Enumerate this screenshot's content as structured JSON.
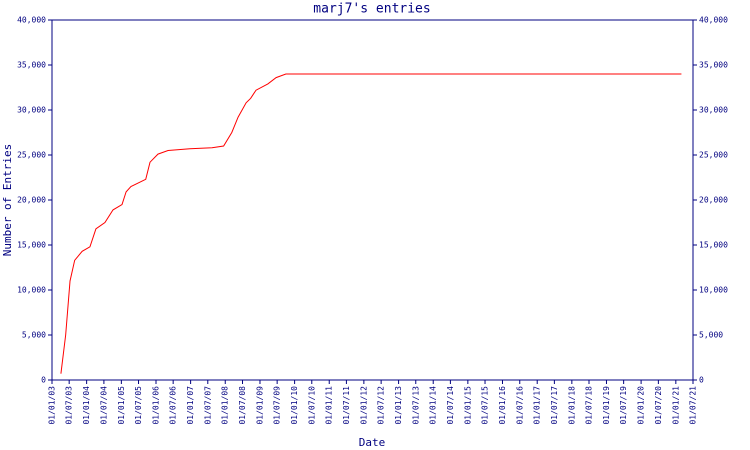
{
  "chart_data": {
    "type": "line",
    "title": "marj7's entries",
    "xlabel": "Date",
    "ylabel": "Number of Entries",
    "x": [
      "2003-04-05",
      "2003-05-25",
      "2003-07-10",
      "2003-08-28",
      "2003-11-15",
      "2004-02-05",
      "2004-04-08",
      "2004-07-12",
      "2004-10-05",
      "2005-01-08",
      "2005-02-20",
      "2005-04-12",
      "2005-09-15",
      "2005-10-30",
      "2006-01-22",
      "2006-05-08",
      "2006-12-25",
      "2007-08-15",
      "2007-12-15",
      "2008-03-10",
      "2008-05-15",
      "2008-08-08",
      "2008-09-25",
      "2008-11-20",
      "2009-03-25",
      "2009-06-20",
      "2009-10-01",
      "2021-03-01"
    ],
    "series": [
      {
        "color": "#ff0000",
        "values": [
          700,
          5000,
          11000,
          13300,
          14300,
          14800,
          16800,
          17500,
          18900,
          19500,
          20900,
          21500,
          22300,
          24200,
          25100,
          25500,
          25700,
          25800,
          26000,
          27500,
          29200,
          30800,
          31300,
          32200,
          32900,
          33600,
          34000,
          34000
        ]
      }
    ],
    "xlim": [
      "2003-01-01",
      "2021-07-01"
    ],
    "xticks": [
      {
        "value": "2003-01-01",
        "label": "01/01/03"
      },
      {
        "value": "2003-07-01",
        "label": "01/07/03"
      },
      {
        "value": "2004-01-01",
        "label": "01/01/04"
      },
      {
        "value": "2004-07-01",
        "label": "01/07/04"
      },
      {
        "value": "2005-01-01",
        "label": "01/01/05"
      },
      {
        "value": "2005-07-01",
        "label": "01/07/05"
      },
      {
        "value": "2006-01-01",
        "label": "01/01/06"
      },
      {
        "value": "2006-07-01",
        "label": "01/07/06"
      },
      {
        "value": "2007-01-01",
        "label": "01/01/07"
      },
      {
        "value": "2007-07-01",
        "label": "01/07/07"
      },
      {
        "value": "2008-01-01",
        "label": "01/01/08"
      },
      {
        "value": "2008-07-01",
        "label": "01/07/08"
      },
      {
        "value": "2009-01-01",
        "label": "01/01/09"
      },
      {
        "value": "2009-07-01",
        "label": "01/07/09"
      },
      {
        "value": "2010-01-01",
        "label": "01/01/10"
      },
      {
        "value": "2010-07-01",
        "label": "01/07/10"
      },
      {
        "value": "2011-01-01",
        "label": "01/01/11"
      },
      {
        "value": "2011-07-01",
        "label": "01/07/11"
      },
      {
        "value": "2012-01-01",
        "label": "01/01/12"
      },
      {
        "value": "2012-07-01",
        "label": "01/07/12"
      },
      {
        "value": "2013-01-01",
        "label": "01/01/13"
      },
      {
        "value": "2013-07-01",
        "label": "01/07/13"
      },
      {
        "value": "2014-01-01",
        "label": "01/01/14"
      },
      {
        "value": "2014-07-01",
        "label": "01/07/14"
      },
      {
        "value": "2015-01-01",
        "label": "01/01/15"
      },
      {
        "value": "2015-07-01",
        "label": "01/07/15"
      },
      {
        "value": "2016-01-01",
        "label": "01/01/16"
      },
      {
        "value": "2016-07-01",
        "label": "01/07/16"
      },
      {
        "value": "2017-01-01",
        "label": "01/01/17"
      },
      {
        "value": "2017-07-01",
        "label": "01/07/17"
      },
      {
        "value": "2018-01-01",
        "label": "01/01/18"
      },
      {
        "value": "2018-07-01",
        "label": "01/07/18"
      },
      {
        "value": "2019-01-01",
        "label": "01/01/19"
      },
      {
        "value": "2019-07-01",
        "label": "01/07/19"
      },
      {
        "value": "2020-01-01",
        "label": "01/01/20"
      },
      {
        "value": "2020-07-01",
        "label": "01/07/20"
      },
      {
        "value": "2021-01-01",
        "label": "01/01/21"
      },
      {
        "value": "2021-07-01",
        "label": "01/07/21"
      }
    ],
    "ylim": [
      0,
      40000
    ],
    "yticks": [
      0,
      {
        "value": 5000,
        "label": "5,000"
      },
      {
        "value": 10000,
        "label": "10,000"
      },
      {
        "value": 15000,
        "label": "15,000"
      },
      {
        "value": 20000,
        "label": "20,000"
      },
      {
        "value": 25000,
        "label": "25,000"
      },
      {
        "value": 30000,
        "label": "30,000"
      },
      {
        "value": 35000,
        "label": "35,000"
      },
      {
        "value": 40000,
        "label": "40,000"
      }
    ],
    "axis_color": "#000080"
  }
}
